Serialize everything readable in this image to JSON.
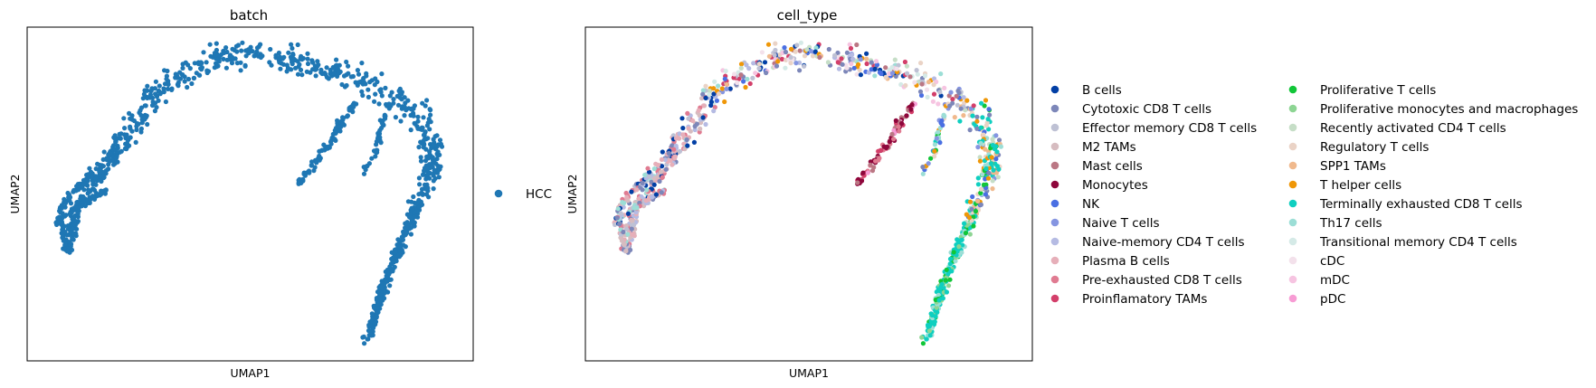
{
  "chart_data": [
    {
      "type": "scatter",
      "title": "batch",
      "xlabel": "UMAP1",
      "ylabel": "UMAP2",
      "xlim": [
        -10,
        10
      ],
      "ylim": [
        -10,
        10
      ],
      "grid": false,
      "ticks": false,
      "legend_placement": "right",
      "color_by": "batch",
      "point_count": 1400,
      "series": [
        {
          "name": "HCC",
          "color": "#1f77b4"
        }
      ]
    },
    {
      "type": "scatter",
      "title": "cell_type",
      "xlabel": "UMAP1",
      "ylabel": "UMAP2",
      "xlim": [
        -10,
        10
      ],
      "ylim": [
        -10,
        10
      ],
      "grid": false,
      "ticks": false,
      "legend_placement": "right, two columns",
      "color_by": "cell_type",
      "point_count": 1400,
      "series": [
        {
          "name": "B cells",
          "color": "#023fa5"
        },
        {
          "name": "Cytotoxic CD8 T cells",
          "color": "#7d87b9"
        },
        {
          "name": "Effector memory CD8 T cells",
          "color": "#bec1d4"
        },
        {
          "name": "M2 TAMs",
          "color": "#d6bcc0"
        },
        {
          "name": "Mast cells",
          "color": "#bb7784"
        },
        {
          "name": "Monocytes",
          "color": "#8e063b"
        },
        {
          "name": "NK",
          "color": "#4a6fe3"
        },
        {
          "name": "Naive T cells",
          "color": "#8595e1"
        },
        {
          "name": "Naive-memory CD4 T cells",
          "color": "#b5bbe3"
        },
        {
          "name": "Plasma B cells",
          "color": "#e6afb9"
        },
        {
          "name": "Pre-exhausted CD8 T cells",
          "color": "#e07b91"
        },
        {
          "name": "Proinflamatory TAMs",
          "color": "#d33f6a"
        },
        {
          "name": "Proliferative T cells",
          "color": "#11c638"
        },
        {
          "name": "Proliferative monocytes and macrophages",
          "color": "#8dd593"
        },
        {
          "name": "Recently activated CD4 T cells",
          "color": "#c6dec7"
        },
        {
          "name": "Regulatory T cells",
          "color": "#ead3c6"
        },
        {
          "name": "SPP1 TAMs",
          "color": "#f0b98d"
        },
        {
          "name": "T helper cells",
          "color": "#ef9708"
        },
        {
          "name": "Terminally exhausted CD8 T cells",
          "color": "#0fcfc0"
        },
        {
          "name": "Th17 cells",
          "color": "#9cded6"
        },
        {
          "name": "Transitional memory CD4 T cells",
          "color": "#d5eae7"
        },
        {
          "name": "cDC",
          "color": "#f3e1eb"
        },
        {
          "name": "mDC",
          "color": "#f6c4e1"
        },
        {
          "name": "pDC",
          "color": "#f79cd4"
        }
      ]
    }
  ]
}
